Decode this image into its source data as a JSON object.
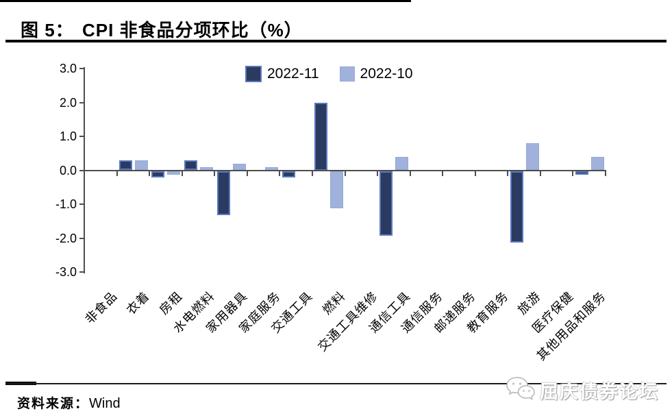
{
  "title": {
    "figure_label": "图 5：",
    "text": "CPI 非食品分项环比（%）"
  },
  "legend": {
    "items": [
      {
        "label": "2022-11"
      },
      {
        "label": "2022-10"
      }
    ]
  },
  "y_axis": {
    "tick_labels": [
      "3.0",
      "2.0",
      "1.0",
      "0.0",
      "-1.0",
      "-2.0",
      "-3.0"
    ]
  },
  "source": {
    "label": "资料来源：",
    "value": "Wind"
  },
  "watermark": {
    "icon": "wechat-icon",
    "text": "屈庆债券论坛"
  },
  "colors": {
    "series_dark_fill": "#2B3A60",
    "series_dark_border": "#5C78BF",
    "series_light_fill": "#A0B2DC",
    "series_light_border": "#96A9D6",
    "axis": "#4d4d4d"
  },
  "chart_data": {
    "type": "bar",
    "title": "CPI 非食品分项环比（%）",
    "xlabel": "",
    "ylabel": "",
    "ylim": [
      -3.0,
      3.0
    ],
    "y_tick_step": 1.0,
    "grid": false,
    "legend_position": "top-center",
    "categories": [
      "非食品",
      "衣着",
      "房租",
      "水电燃料",
      "家用器具",
      "家庭服务",
      "交通工具",
      "燃料",
      "交通工具维修",
      "通信工具",
      "通信服务",
      "邮递服务",
      "教育服务",
      "旅游",
      "医疗保健",
      "其他用品和服务"
    ],
    "series": [
      {
        "name": "2022-11",
        "fill": "#2B3A60",
        "border": "#5C78BF",
        "values": [
          0.0,
          0.3,
          -0.2,
          0.3,
          -1.3,
          0.0,
          -0.2,
          2.0,
          0.0,
          -1.9,
          0.0,
          0.0,
          0.0,
          -2.1,
          0.0,
          -0.1
        ]
      },
      {
        "name": "2022-10",
        "fill": "#A0B2DC",
        "border": "#96A9D6",
        "values": [
          0.0,
          0.3,
          -0.1,
          0.1,
          0.2,
          0.1,
          0.0,
          -1.1,
          0.0,
          0.4,
          0.0,
          0.0,
          0.0,
          0.8,
          0.0,
          0.4
        ]
      }
    ]
  }
}
